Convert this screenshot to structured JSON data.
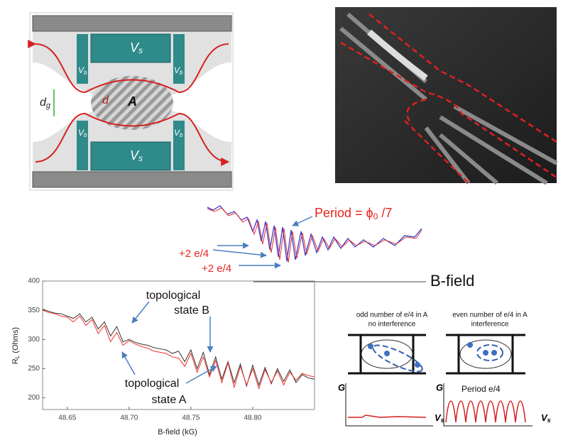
{
  "device_diagram": {
    "vs_top": "V",
    "vs_top_sub": "s",
    "vs_bottom": "V",
    "vs_bottom_sub": "s",
    "vb_ul": "V",
    "vb_ul_sub": "b",
    "vb_ur": "V",
    "vb_ur_sub": "b",
    "vb_ll": "V",
    "vb_ll_sub": "b",
    "vb_lr": "V",
    "vb_lr_sub": "b",
    "dg": "d",
    "dg_sub": "g",
    "d": "d",
    "area": "A"
  },
  "oscillation_panel": {
    "period_main": "Period = ϕ",
    "period_sub": "0",
    "period_rest": " /7",
    "step_1": "+2 e/4",
    "step_2": "+2 e/4",
    "axis": "B-field"
  },
  "interference_panel": {
    "odd_title": "odd number of e/4 in A",
    "odd_subtitle": "no interference",
    "even_title": "even number of e/4 in A",
    "even_subtitle": "interference",
    "odd_g": "G",
    "odd_v": "V",
    "odd_v_sub": "s",
    "even_g": "G",
    "even_v": "V",
    "even_v_sub": "s",
    "even_period": "Period e/4"
  },
  "chart_data": {
    "type": "line",
    "x_label": "B-field (kG)",
    "y_label_main": "R",
    "y_label_sub": "L",
    "y_label_rest": " (Ohms)",
    "annotations": [
      "topological",
      "state B",
      "topological",
      "state A"
    ],
    "x": [
      48.63,
      48.635,
      48.64,
      48.645,
      48.65,
      48.655,
      48.66,
      48.665,
      48.67,
      48.675,
      48.68,
      48.685,
      48.69,
      48.695,
      48.7,
      48.705,
      48.71,
      48.715,
      48.72,
      48.725,
      48.73,
      48.735,
      48.74,
      48.745,
      48.75,
      48.755,
      48.76,
      48.765,
      48.77,
      48.775,
      48.78,
      48.785,
      48.79,
      48.795,
      48.8,
      48.805,
      48.81,
      48.815,
      48.82,
      48.825,
      48.83,
      48.835,
      48.84,
      48.845,
      48.85
    ],
    "series": [
      {
        "color": "#333333",
        "values": [
          352,
          348,
          345,
          344,
          340,
          336,
          344,
          330,
          338,
          318,
          330,
          306,
          322,
          296,
          300,
          295,
          292,
          290,
          286,
          284,
          282,
          276,
          280,
          262,
          282,
          250,
          278,
          240,
          270,
          232,
          262,
          226,
          258,
          220,
          256,
          222,
          252,
          224,
          250,
          228,
          248,
          226,
          240,
          234,
          232
        ]
      },
      {
        "color": "#f0302a",
        "values": [
          350,
          346,
          344,
          340,
          338,
          330,
          340,
          324,
          334,
          310,
          324,
          296,
          312,
          290,
          298,
          292,
          288,
          285,
          280,
          278,
          276,
          270,
          268,
          254,
          276,
          244,
          270,
          236,
          264,
          226,
          260,
          218,
          254,
          222,
          250,
          216,
          248,
          226,
          246,
          222,
          244,
          230,
          242,
          238,
          236
        ]
      }
    ],
    "xlim": [
      48.63,
      48.85
    ],
    "ylim": [
      180,
      400
    ],
    "xticks": [
      48.65,
      {
        "value": 48.7,
        "label": "48.70"
      },
      48.75,
      {
        "value": 48.8,
        "label": "48.80"
      }
    ],
    "yticks": [
      200,
      250,
      300,
      350,
      400
    ]
  }
}
